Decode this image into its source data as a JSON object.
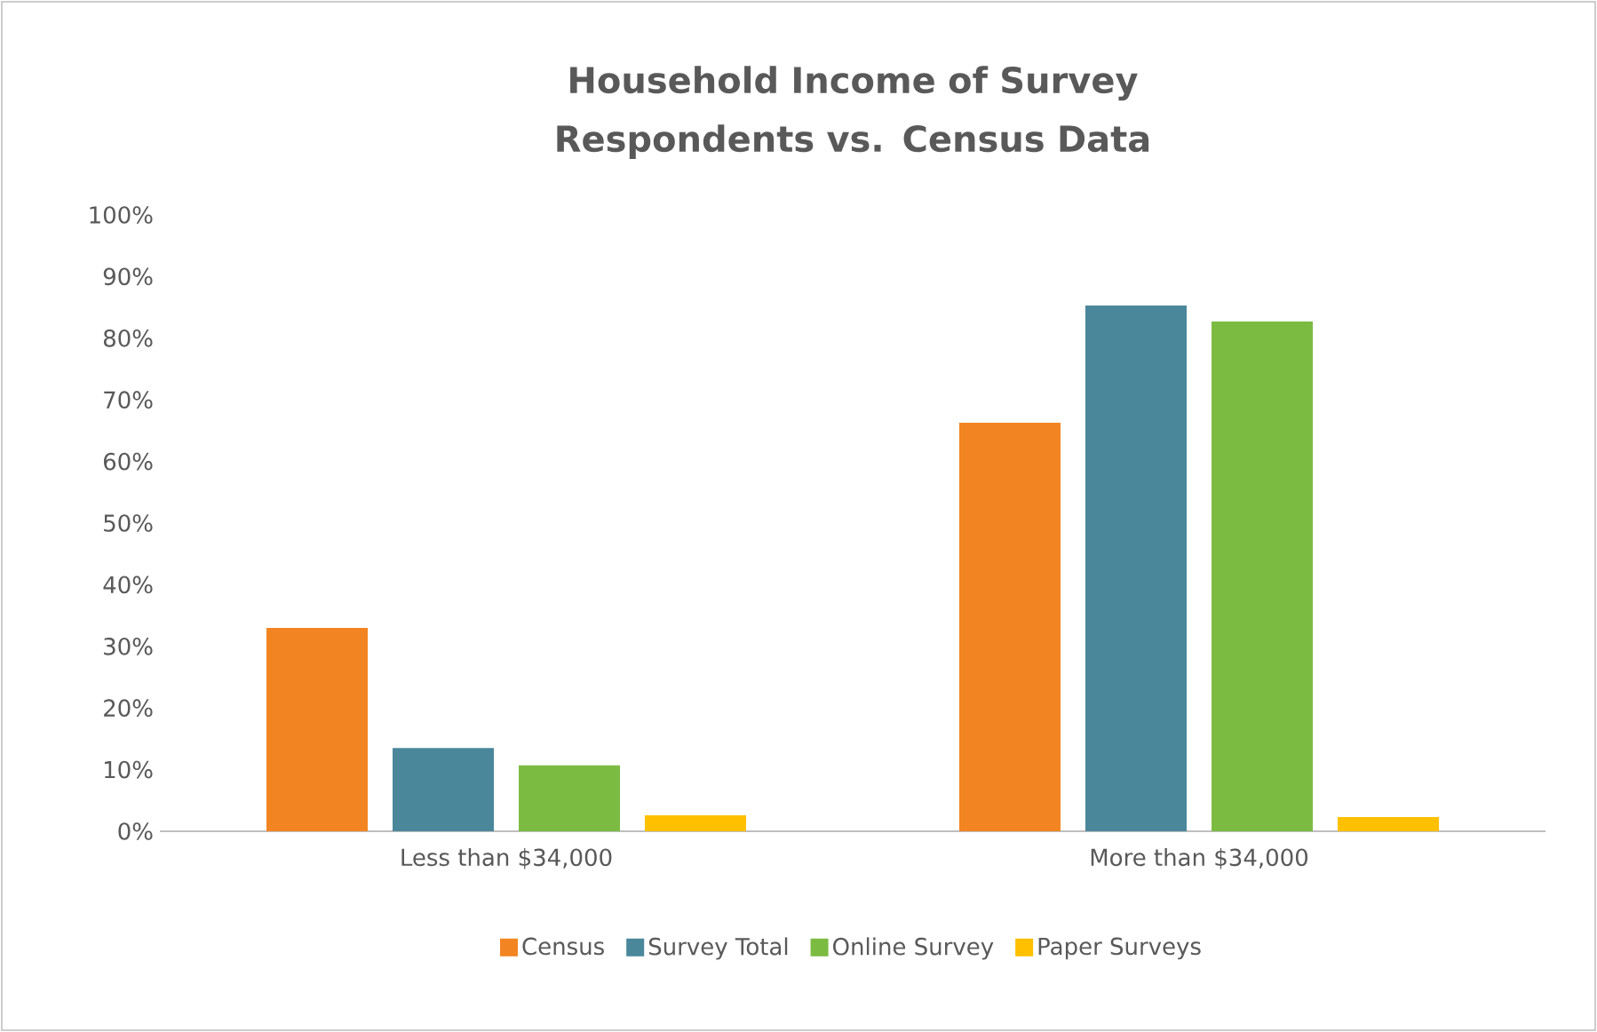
{
  "chart_data": {
    "type": "bar",
    "title": "Household Income of Survey Respondents vs. Census Data",
    "categories": [
      "Less than $34,000",
      "More than $34,000"
    ],
    "series": [
      {
        "name": "Census",
        "color": "#f28522",
        "values": [
          33,
          66.3
        ]
      },
      {
        "name": "Survey Total",
        "color": "#4a879b",
        "values": [
          13.5,
          85.3
        ]
      },
      {
        "name": "Online Survey",
        "color": "#7cbb42",
        "values": [
          10.7,
          82.7
        ]
      },
      {
        "name": "Paper Surveys",
        "color": "#ffc000",
        "values": [
          2.6,
          2.3
        ]
      }
    ],
    "ylim": [
      0,
      100
    ],
    "yticks": [
      {
        "value": 0,
        "label": "0%"
      },
      {
        "value": 10,
        "label": "10%"
      },
      {
        "value": 20,
        "label": "20%"
      },
      {
        "value": 30,
        "label": "30%"
      },
      {
        "value": 40,
        "label": "40%"
      },
      {
        "value": 50,
        "label": "50%"
      },
      {
        "value": 60,
        "label": "60%"
      },
      {
        "value": 70,
        "label": "70%"
      },
      {
        "value": 80,
        "label": "80%"
      },
      {
        "value": 90,
        "label": "90%"
      },
      {
        "value": 100,
        "label": "100%"
      }
    ],
    "legend": "bottom"
  }
}
